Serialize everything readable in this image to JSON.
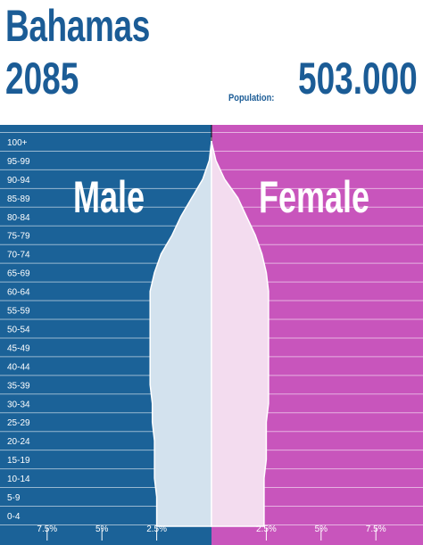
{
  "header": {
    "country": "Bahamas",
    "year": "2085",
    "population_label": "Population:",
    "population_value": "503.000"
  },
  "colors": {
    "male_bg": "#1b6298",
    "female_bg": "#c855bc",
    "male_fill": "#d3e2ee",
    "female_fill": "#f3dcef",
    "title_blue": "#1b5c96"
  },
  "chart_data": {
    "type": "bar",
    "subtype": "population-pyramid",
    "categories": [
      "0-4",
      "5-9",
      "10-14",
      "15-19",
      "20-24",
      "25-29",
      "30-34",
      "35-39",
      "40-44",
      "45-49",
      "50-54",
      "55-59",
      "60-64",
      "65-69",
      "70-74",
      "75-79",
      "80-84",
      "85-89",
      "90-94",
      "95-99",
      "100+"
    ],
    "series": [
      {
        "name": "Male",
        "values": [
          2.5,
          2.5,
          2.6,
          2.6,
          2.6,
          2.7,
          2.7,
          2.8,
          2.8,
          2.8,
          2.8,
          2.8,
          2.8,
          2.6,
          2.3,
          1.8,
          1.4,
          0.9,
          0.4,
          0.1,
          0.0
        ]
      },
      {
        "name": "Female",
        "values": [
          2.4,
          2.4,
          2.4,
          2.5,
          2.5,
          2.5,
          2.6,
          2.6,
          2.6,
          2.6,
          2.6,
          2.6,
          2.6,
          2.5,
          2.3,
          2.0,
          1.6,
          1.2,
          0.6,
          0.2,
          0.0
        ]
      }
    ],
    "side_labels": {
      "left": "Male",
      "right": "Female"
    },
    "x_ticks_left": [
      "7.5%",
      "5%",
      "2.5%"
    ],
    "x_tick_values_left": [
      7.5,
      5,
      2.5
    ],
    "x_ticks_right": [
      "2.5%",
      "5%",
      "7.5%"
    ],
    "x_tick_values_right": [
      2.5,
      5,
      7.5
    ],
    "xlim": [
      0,
      9.65
    ],
    "grid": true
  }
}
